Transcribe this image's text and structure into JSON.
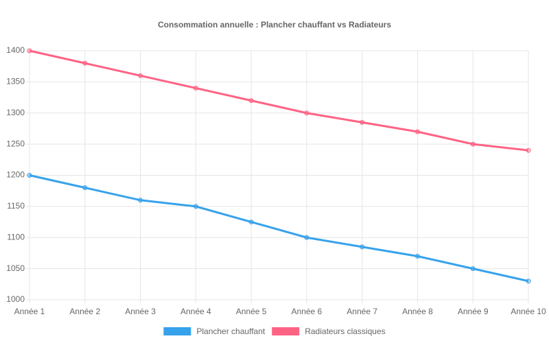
{
  "chart_data": {
    "type": "line",
    "title": "Consommation annuelle : Plancher chauffant vs Radiateurs",
    "categories": [
      "Année 1",
      "Année 2",
      "Année 3",
      "Année 4",
      "Année 5",
      "Année 6",
      "Année 7",
      "Année 8",
      "Année 9",
      "Année 10"
    ],
    "series": [
      {
        "name": "Plancher chauffant",
        "color": "#36a2eb",
        "values": [
          1200,
          1180,
          1160,
          1150,
          1125,
          1100,
          1085,
          1070,
          1050,
          1030
        ]
      },
      {
        "name": "Radiateurs classiques",
        "color": "#ff6384",
        "values": [
          1400,
          1380,
          1360,
          1340,
          1320,
          1300,
          1285,
          1270,
          1250,
          1240
        ]
      }
    ],
    "ylim": [
      1000,
      1400
    ],
    "yticks": [
      1000,
      1050,
      1100,
      1150,
      1200,
      1250,
      1300,
      1350,
      1400
    ],
    "grid": true,
    "legend": "bottom"
  }
}
